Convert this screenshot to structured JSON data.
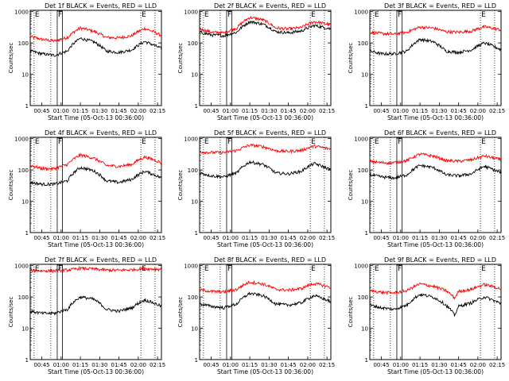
{
  "chart_data": [
    {
      "type": "line",
      "title": "Det 1f BLACK = Events, RED = LLD",
      "xlabel": "Start Time (05-Oct-13 00:36:00)",
      "ylabel": "Counts/sec",
      "x_ticks": [
        "00:45",
        "01:00",
        "01:15",
        "01:30",
        "01:45",
        "02:00",
        "02:15"
      ],
      "y_ticks": [
        "1",
        "10",
        "100",
        "1000"
      ],
      "ylim": [
        1,
        1100
      ],
      "y_scale": "log",
      "xlim": [
        "00:36",
        "02:18"
      ],
      "markers": [
        {
          "label": "E",
          "time": "00:39"
        },
        {
          "label": "",
          "time": "00:52"
        },
        {
          "label": "F",
          "time": "00:57"
        },
        {
          "label": "",
          "time": "01:01"
        },
        {
          "label": "E",
          "time": "02:02"
        },
        {
          "label": "",
          "time": "02:13"
        }
      ],
      "series": [
        {
          "name": "LLD",
          "color": "#ff0000",
          "x": [
            "00:36",
            "00:45",
            "00:55",
            "01:05",
            "01:15",
            "01:25",
            "01:35",
            "01:45",
            "01:55",
            "02:05",
            "02:18"
          ],
          "values": [
            160,
            130,
            115,
            150,
            300,
            240,
            150,
            145,
            170,
            290,
            170
          ]
        },
        {
          "name": "Events",
          "color": "#000000",
          "x": [
            "00:36",
            "00:45",
            "00:55",
            "01:05",
            "01:15",
            "01:25",
            "01:35",
            "01:45",
            "01:55",
            "02:05",
            "02:18"
          ],
          "values": [
            55,
            45,
            40,
            55,
            140,
            110,
            55,
            50,
            60,
            110,
            65
          ]
        }
      ]
    },
    {
      "type": "line",
      "title": "Det 2f BLACK = Events, RED = LLD",
      "xlabel": "Start Time (05-Oct-13 00:36:00)",
      "ylabel": "Counts/sec",
      "x_ticks": [
        "00:45",
        "01:00",
        "01:15",
        "01:30",
        "01:45",
        "02:00",
        "02:15"
      ],
      "y_ticks": [
        "1",
        "10",
        "100",
        "1000"
      ],
      "ylim": [
        1,
        1100
      ],
      "y_scale": "log",
      "xlim": [
        "00:36",
        "02:18"
      ],
      "markers": [
        {
          "label": "E",
          "time": "00:39"
        },
        {
          "label": "",
          "time": "00:52"
        },
        {
          "label": "F",
          "time": "00:57"
        },
        {
          "label": "",
          "time": "01:01"
        },
        {
          "label": "E",
          "time": "02:02"
        },
        {
          "label": "",
          "time": "02:13"
        }
      ],
      "series": [
        {
          "name": "LLD",
          "color": "#ff0000",
          "x": [
            "00:36",
            "00:45",
            "00:55",
            "01:05",
            "01:15",
            "01:25",
            "01:35",
            "01:45",
            "01:55",
            "02:05",
            "02:18"
          ],
          "values": [
            280,
            220,
            210,
            300,
            650,
            550,
            300,
            280,
            310,
            480,
            380
          ]
        },
        {
          "name": "Events",
          "color": "#000000",
          "x": [
            "00:36",
            "00:45",
            "00:55",
            "01:05",
            "01:15",
            "01:25",
            "01:35",
            "01:45",
            "01:55",
            "02:05",
            "02:18"
          ],
          "values": [
            220,
            180,
            170,
            220,
            480,
            400,
            230,
            210,
            240,
            360,
            280
          ]
        }
      ]
    },
    {
      "type": "line",
      "title": "Det 3f BLACK = Events, RED = LLD",
      "xlabel": "Start Time (05-Oct-13 00:36:00)",
      "ylabel": "Counts/sec",
      "x_ticks": [
        "00:45",
        "01:00",
        "01:15",
        "01:30",
        "01:45",
        "02:00",
        "02:15"
      ],
      "y_ticks": [
        "1",
        "10",
        "100",
        "1000"
      ],
      "ylim": [
        1,
        1100
      ],
      "y_scale": "log",
      "xlim": [
        "00:36",
        "02:18"
      ],
      "markers": [
        {
          "label": "E",
          "time": "00:39"
        },
        {
          "label": "",
          "time": "00:52"
        },
        {
          "label": "F",
          "time": "00:57"
        },
        {
          "label": "",
          "time": "01:01"
        },
        {
          "label": "E",
          "time": "02:02"
        },
        {
          "label": "",
          "time": "02:13"
        }
      ],
      "series": [
        {
          "name": "LLD",
          "color": "#ff0000",
          "x": [
            "00:36",
            "00:45",
            "00:55",
            "01:05",
            "01:15",
            "01:25",
            "01:35",
            "01:45",
            "01:55",
            "02:05",
            "02:18"
          ],
          "values": [
            220,
            200,
            190,
            220,
            320,
            300,
            230,
            220,
            240,
            330,
            260
          ]
        },
        {
          "name": "Events",
          "color": "#000000",
          "x": [
            "00:36",
            "00:45",
            "00:55",
            "01:05",
            "01:15",
            "01:25",
            "01:35",
            "01:45",
            "01:55",
            "02:05",
            "02:18"
          ],
          "values": [
            55,
            45,
            45,
            55,
            130,
            110,
            55,
            50,
            60,
            100,
            60
          ]
        }
      ]
    },
    {
      "type": "line",
      "title": "Det 4f BLACK = Events, RED = LLD",
      "xlabel": "Start Time (05-Oct-13 00:36:00)",
      "ylabel": "Counts/sec",
      "x_ticks": [
        "00:45",
        "01:00",
        "01:15",
        "01:30",
        "01:45",
        "02:00",
        "02:15"
      ],
      "y_ticks": [
        "1",
        "10",
        "100",
        "1000"
      ],
      "ylim": [
        1,
        1100
      ],
      "y_scale": "log",
      "xlim": [
        "00:36",
        "02:18"
      ],
      "markers": [
        {
          "label": "E",
          "time": "00:39"
        },
        {
          "label": "",
          "time": "00:52"
        },
        {
          "label": "F",
          "time": "00:57"
        },
        {
          "label": "",
          "time": "01:01"
        },
        {
          "label": "E",
          "time": "02:02"
        },
        {
          "label": "",
          "time": "02:13"
        }
      ],
      "series": [
        {
          "name": "LLD",
          "color": "#ff0000",
          "x": [
            "00:36",
            "00:45",
            "00:55",
            "01:05",
            "01:15",
            "01:25",
            "01:35",
            "01:45",
            "01:55",
            "02:05",
            "02:18"
          ],
          "values": [
            140,
            110,
            110,
            150,
            300,
            240,
            140,
            130,
            150,
            260,
            170
          ]
        },
        {
          "name": "Events",
          "color": "#000000",
          "x": [
            "00:36",
            "00:45",
            "00:55",
            "01:05",
            "01:15",
            "01:25",
            "01:35",
            "01:45",
            "01:55",
            "02:05",
            "02:18"
          ],
          "values": [
            40,
            35,
            35,
            45,
            120,
            95,
            45,
            40,
            50,
            90,
            55
          ]
        }
      ]
    },
    {
      "type": "line",
      "title": "Det 5f BLACK = Events, RED = LLD",
      "xlabel": "Start Time (05-Oct-13 00:36:00)",
      "ylabel": "Counts/sec",
      "x_ticks": [
        "00:45",
        "01:00",
        "01:15",
        "01:30",
        "01:45",
        "02:00",
        "02:15"
      ],
      "y_ticks": [
        "1",
        "10",
        "100",
        "1000"
      ],
      "ylim": [
        1,
        1100
      ],
      "y_scale": "log",
      "xlim": [
        "00:36",
        "02:18"
      ],
      "markers": [
        {
          "label": "E",
          "time": "00:39"
        },
        {
          "label": "",
          "time": "00:52"
        },
        {
          "label": "F",
          "time": "00:57"
        },
        {
          "label": "",
          "time": "01:01"
        },
        {
          "label": "E",
          "time": "02:02"
        },
        {
          "label": "",
          "time": "02:13"
        }
      ],
      "series": [
        {
          "name": "LLD",
          "color": "#ff0000",
          "x": [
            "00:36",
            "00:45",
            "00:55",
            "01:05",
            "01:15",
            "01:25",
            "01:35",
            "01:45",
            "01:55",
            "02:05",
            "02:18"
          ],
          "values": [
            380,
            360,
            360,
            420,
            620,
            560,
            410,
            390,
            420,
            580,
            460
          ]
        },
        {
          "name": "Events",
          "color": "#000000",
          "x": [
            "00:36",
            "00:45",
            "00:55",
            "01:05",
            "01:15",
            "01:25",
            "01:35",
            "01:45",
            "01:55",
            "02:05",
            "02:18"
          ],
          "values": [
            80,
            65,
            60,
            80,
            180,
            150,
            80,
            75,
            90,
            160,
            100
          ]
        }
      ]
    },
    {
      "type": "line",
      "title": "Det 6f BLACK = Events, RED = LLD",
      "xlabel": "Start Time (05-Oct-13 00:36:00)",
      "ylabel": "Counts/sec",
      "x_ticks": [
        "00:45",
        "01:00",
        "01:15",
        "01:30",
        "01:45",
        "02:00",
        "02:15"
      ],
      "y_ticks": [
        "1",
        "10",
        "100",
        "1000"
      ],
      "ylim": [
        1,
        1100
      ],
      "y_scale": "log",
      "xlim": [
        "00:36",
        "02:18"
      ],
      "markers": [
        {
          "label": "E",
          "time": "00:39"
        },
        {
          "label": "",
          "time": "00:52"
        },
        {
          "label": "F",
          "time": "00:57"
        },
        {
          "label": "",
          "time": "01:01"
        },
        {
          "label": "E",
          "time": "02:02"
        },
        {
          "label": "",
          "time": "02:13"
        }
      ],
      "series": [
        {
          "name": "LLD",
          "color": "#ff0000",
          "x": [
            "00:36",
            "00:45",
            "00:55",
            "01:05",
            "01:15",
            "01:25",
            "01:35",
            "01:45",
            "01:55",
            "02:05",
            "02:18"
          ],
          "values": [
            190,
            170,
            170,
            200,
            320,
            280,
            200,
            190,
            210,
            280,
            210
          ]
        },
        {
          "name": "Events",
          "color": "#000000",
          "x": [
            "00:36",
            "00:45",
            "00:55",
            "01:05",
            "01:15",
            "01:25",
            "01:35",
            "01:45",
            "01:55",
            "02:05",
            "02:18"
          ],
          "values": [
            70,
            60,
            55,
            70,
            140,
            120,
            70,
            65,
            75,
            130,
            80
          ]
        }
      ]
    },
    {
      "type": "line",
      "title": "Det 7f BLACK = Events, RED = LLD",
      "xlabel": "Start Time (05-Oct-13 00:36:00)",
      "ylabel": "Counts/sec",
      "x_ticks": [
        "00:45",
        "01:00",
        "01:15",
        "01:30",
        "01:45",
        "02:00",
        "02:15"
      ],
      "y_ticks": [
        "1",
        "10",
        "100",
        "1000"
      ],
      "ylim": [
        1,
        1100
      ],
      "y_scale": "log",
      "xlim": [
        "00:36",
        "02:18"
      ],
      "markers": [
        {
          "label": "E",
          "time": "00:39"
        },
        {
          "label": "",
          "time": "00:52"
        },
        {
          "label": "F",
          "time": "00:57"
        },
        {
          "label": "",
          "time": "01:01"
        },
        {
          "label": "E",
          "time": "02:02"
        },
        {
          "label": "",
          "time": "02:13"
        }
      ],
      "series": [
        {
          "name": "LLD",
          "color": "#ff0000",
          "x": [
            "00:36",
            "00:45",
            "00:55",
            "01:05",
            "01:15",
            "01:25",
            "01:35",
            "01:45",
            "01:55",
            "02:05",
            "02:18"
          ],
          "values": [
            700,
            680,
            690,
            720,
            820,
            780,
            720,
            710,
            740,
            800,
            760
          ]
        },
        {
          "name": "Events",
          "color": "#000000",
          "x": [
            "00:36",
            "00:45",
            "00:55",
            "01:05",
            "01:15",
            "01:25",
            "01:35",
            "01:45",
            "01:55",
            "02:05",
            "02:18"
          ],
          "values": [
            35,
            30,
            30,
            40,
            100,
            85,
            40,
            35,
            45,
            80,
            50
          ]
        }
      ]
    },
    {
      "type": "line",
      "title": "Det 8f BLACK = Events, RED = LLD",
      "xlabel": "Start Time (05-Oct-13 00:36:00)",
      "ylabel": "Counts/sec",
      "x_ticks": [
        "00:45",
        "01:00",
        "01:15",
        "01:30",
        "01:45",
        "02:00",
        "02:15"
      ],
      "y_ticks": [
        "1",
        "10",
        "100",
        "1000"
      ],
      "ylim": [
        1,
        1100
      ],
      "y_scale": "log",
      "xlim": [
        "00:36",
        "02:18"
      ],
      "markers": [
        {
          "label": "E",
          "time": "00:39"
        },
        {
          "label": "",
          "time": "00:52"
        },
        {
          "label": "F",
          "time": "00:57"
        },
        {
          "label": "",
          "time": "01:01"
        },
        {
          "label": "E",
          "time": "02:02"
        },
        {
          "label": "",
          "time": "02:13"
        }
      ],
      "series": [
        {
          "name": "LLD",
          "color": "#ff0000",
          "x": [
            "00:36",
            "00:45",
            "00:55",
            "01:05",
            "01:15",
            "01:25",
            "01:35",
            "01:45",
            "01:55",
            "02:05",
            "02:18"
          ],
          "values": [
            170,
            150,
            145,
            175,
            300,
            260,
            175,
            165,
            185,
            270,
            200
          ]
        },
        {
          "name": "Events",
          "color": "#000000",
          "x": [
            "00:36",
            "00:45",
            "00:55",
            "01:05",
            "01:15",
            "01:25",
            "01:35",
            "01:45",
            "01:55",
            "02:05",
            "02:18"
          ],
          "values": [
            60,
            50,
            45,
            60,
            130,
            110,
            60,
            55,
            65,
            110,
            70
          ]
        }
      ]
    },
    {
      "type": "line",
      "title": "Det 9f BLACK = Events, RED = LLD",
      "xlabel": "Start Time (05-Oct-13 00:36:00)",
      "ylabel": "Counts/sec",
      "x_ticks": [
        "00:45",
        "01:00",
        "01:15",
        "01:30",
        "01:45",
        "02:00",
        "02:15"
      ],
      "y_ticks": [
        "1",
        "10",
        "100",
        "1000"
      ],
      "ylim": [
        1,
        1100
      ],
      "y_scale": "log",
      "xlim": [
        "00:36",
        "02:18"
      ],
      "markers": [
        {
          "label": "E",
          "time": "00:39"
        },
        {
          "label": "",
          "time": "00:52"
        },
        {
          "label": "F",
          "time": "00:57"
        },
        {
          "label": "",
          "time": "01:01"
        },
        {
          "label": "E",
          "time": "02:02"
        },
        {
          "label": "",
          "time": "02:13"
        }
      ],
      "series": [
        {
          "name": "LLD",
          "color": "#ff0000",
          "x": [
            "00:36",
            "00:45",
            "00:55",
            "01:05",
            "01:15",
            "01:25",
            "01:35",
            "01:42",
            "01:45",
            "01:55",
            "02:05",
            "02:18"
          ],
          "values": [
            160,
            140,
            135,
            160,
            260,
            220,
            160,
            90,
            150,
            175,
            250,
            180
          ]
        },
        {
          "name": "Events",
          "color": "#000000",
          "x": [
            "00:36",
            "00:45",
            "00:55",
            "01:05",
            "01:15",
            "01:25",
            "01:35",
            "01:42",
            "01:45",
            "01:55",
            "02:05",
            "02:18"
          ],
          "values": [
            55,
            45,
            40,
            55,
            120,
            100,
            55,
            25,
            50,
            65,
            100,
            60
          ]
        }
      ]
    }
  ]
}
